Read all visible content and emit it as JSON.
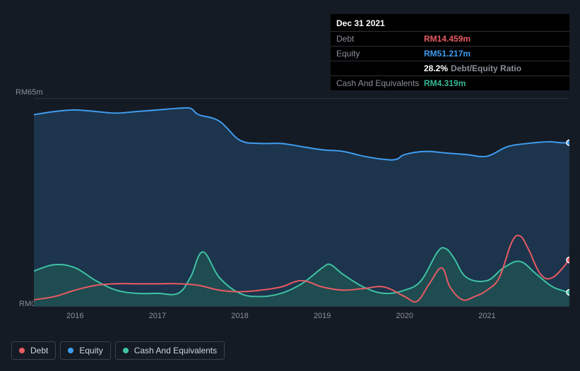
{
  "tooltip": {
    "date": "Dec 31 2021",
    "rows": [
      {
        "label": "Debt",
        "value": "RM14.459m",
        "cls": "val-debt"
      },
      {
        "label": "Equity",
        "value": "RM51.217m",
        "cls": "val-equity"
      },
      {
        "label": "",
        "pct": "28.2%",
        "ratio_text": "Debt/Equity Ratio"
      },
      {
        "label": "Cash And Equivalents",
        "value": "RM4.319m",
        "cls": "val-cash"
      }
    ]
  },
  "chart": {
    "y_axis": {
      "top": "RM65m",
      "bottom": "RM0",
      "min": 0,
      "max": 65
    },
    "x_years": [
      "2016",
      "2017",
      "2018",
      "2019",
      "2020",
      "2021"
    ],
    "x_min": 2015.5,
    "x_max": 2022.0,
    "colors": {
      "debt": "#e85b63",
      "equity": "#3f9df0",
      "cash": "#3fc2a4",
      "equity_fill": "rgba(35,72,110,0.55)",
      "cash_fill": "rgba(32,96,85,0.55)",
      "bg": "#151b24"
    },
    "series": {
      "equity": [
        [
          2015.5,
          60
        ],
        [
          2015.75,
          61
        ],
        [
          2016.0,
          61.5
        ],
        [
          2016.25,
          61
        ],
        [
          2016.5,
          60.5
        ],
        [
          2016.75,
          61
        ],
        [
          2017.0,
          61.5
        ],
        [
          2017.25,
          62
        ],
        [
          2017.4,
          62
        ],
        [
          2017.5,
          60
        ],
        [
          2017.75,
          58
        ],
        [
          2018.0,
          52
        ],
        [
          2018.25,
          51
        ],
        [
          2018.5,
          51
        ],
        [
          2018.75,
          50
        ],
        [
          2019.0,
          49
        ],
        [
          2019.25,
          48.5
        ],
        [
          2019.5,
          47
        ],
        [
          2019.75,
          46
        ],
        [
          2019.9,
          46
        ],
        [
          2020.0,
          47.5
        ],
        [
          2020.25,
          48.5
        ],
        [
          2020.5,
          48
        ],
        [
          2020.75,
          47.5
        ],
        [
          2021.0,
          47
        ],
        [
          2021.25,
          50
        ],
        [
          2021.5,
          51
        ],
        [
          2021.75,
          51.5
        ],
        [
          2021.9,
          51.2
        ],
        [
          2022.0,
          51.2
        ]
      ],
      "cash": [
        [
          2015.5,
          11
        ],
        [
          2015.75,
          13
        ],
        [
          2016.0,
          12
        ],
        [
          2016.25,
          8
        ],
        [
          2016.5,
          5
        ],
        [
          2016.75,
          4
        ],
        [
          2017.0,
          4
        ],
        [
          2017.25,
          4
        ],
        [
          2017.4,
          9
        ],
        [
          2017.55,
          17
        ],
        [
          2017.75,
          9
        ],
        [
          2018.0,
          4
        ],
        [
          2018.25,
          3
        ],
        [
          2018.5,
          4
        ],
        [
          2018.75,
          7
        ],
        [
          2019.0,
          12
        ],
        [
          2019.1,
          13
        ],
        [
          2019.25,
          10
        ],
        [
          2019.5,
          6
        ],
        [
          2019.75,
          4
        ],
        [
          2020.0,
          5
        ],
        [
          2020.2,
          8
        ],
        [
          2020.4,
          17
        ],
        [
          2020.5,
          18
        ],
        [
          2020.6,
          15
        ],
        [
          2020.75,
          9
        ],
        [
          2021.0,
          8
        ],
        [
          2021.2,
          12
        ],
        [
          2021.4,
          14
        ],
        [
          2021.6,
          10
        ],
        [
          2021.8,
          6
        ],
        [
          2022.0,
          4.3
        ]
      ],
      "debt": [
        [
          2015.5,
          2
        ],
        [
          2015.75,
          3
        ],
        [
          2016.0,
          5
        ],
        [
          2016.25,
          6.5
        ],
        [
          2016.5,
          7
        ],
        [
          2016.75,
          7
        ],
        [
          2017.0,
          7
        ],
        [
          2017.25,
          7
        ],
        [
          2017.5,
          6.5
        ],
        [
          2017.75,
          5
        ],
        [
          2018.0,
          4.5
        ],
        [
          2018.25,
          5
        ],
        [
          2018.5,
          6
        ],
        [
          2018.75,
          8
        ],
        [
          2019.0,
          6
        ],
        [
          2019.25,
          5
        ],
        [
          2019.5,
          5.5
        ],
        [
          2019.75,
          6
        ],
        [
          2020.0,
          3
        ],
        [
          2020.15,
          1.5
        ],
        [
          2020.3,
          7
        ],
        [
          2020.45,
          12
        ],
        [
          2020.55,
          6
        ],
        [
          2020.7,
          2
        ],
        [
          2020.85,
          3
        ],
        [
          2021.0,
          5
        ],
        [
          2021.15,
          9
        ],
        [
          2021.3,
          20
        ],
        [
          2021.4,
          22
        ],
        [
          2021.5,
          18
        ],
        [
          2021.65,
          10
        ],
        [
          2021.8,
          9
        ],
        [
          2022.0,
          14.5
        ]
      ]
    },
    "marker": {
      "x": 2022.0,
      "debt": 14.459,
      "equity": 51.217,
      "cash": 4.319
    }
  },
  "legend": [
    {
      "name": "Debt",
      "color": "#e85b63"
    },
    {
      "name": "Equity",
      "color": "#3f9df0"
    },
    {
      "name": "Cash And Equivalents",
      "color": "#3fc2a4"
    }
  ]
}
